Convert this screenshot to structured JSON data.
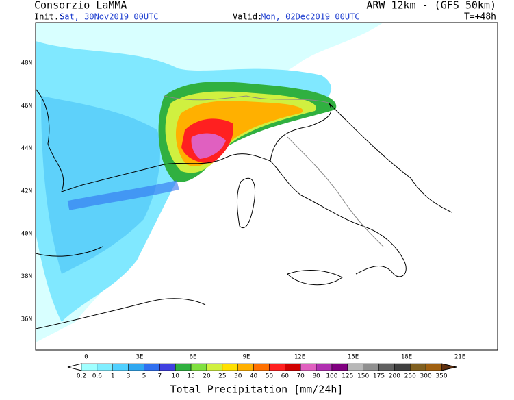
{
  "header": {
    "left_title": "Consorzio LaMMA",
    "right_title": "ARW 12km - (GFS 50km)",
    "init_label": "Init.:",
    "init_value": "Sat, 30Nov2019 00UTC",
    "valid_label": "Valid:",
    "valid_value": "Mon, 02Dec2019 00UTC",
    "lead": "T=+48h"
  },
  "map": {
    "lat_labels": [
      "48N",
      "46N",
      "44N",
      "42N",
      "40N",
      "38N",
      "36N"
    ],
    "lon_labels": [
      "0",
      "3E",
      "6E",
      "9E",
      "12E",
      "15E",
      "18E",
      "21E"
    ]
  },
  "legend": {
    "title": "Total Precipitation [mm/24h]",
    "levels": [
      "0.2",
      "0.6",
      "1",
      "3",
      "5",
      "7",
      "10",
      "15",
      "20",
      "25",
      "30",
      "40",
      "50",
      "60",
      "70",
      "80",
      "100",
      "125",
      "150",
      "175",
      "200",
      "250",
      "300",
      "350"
    ],
    "colors": [
      "#ffffff",
      "#a0ffff",
      "#80eeff",
      "#50d0ff",
      "#30a8f0",
      "#3070f0",
      "#4040e0",
      "#30b040",
      "#80e040",
      "#d0f040",
      "#ffe000",
      "#ffb000",
      "#ff7000",
      "#ff2020",
      "#d00000",
      "#e060c0",
      "#b030b0",
      "#800080",
      "#b8b8b8",
      "#909090",
      "#606060",
      "#404040",
      "#806020",
      "#a06010",
      "#603010"
    ]
  }
}
